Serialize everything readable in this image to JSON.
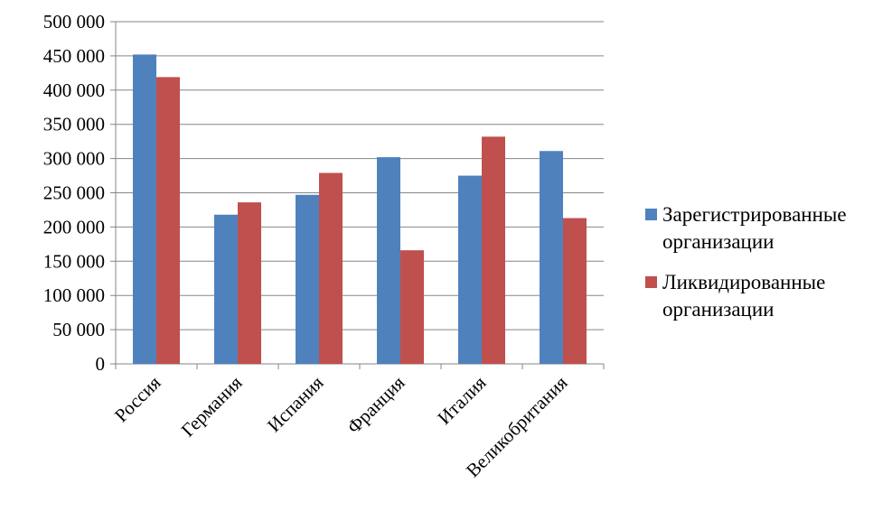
{
  "chart_data": {
    "type": "bar",
    "title": "",
    "xlabel": "",
    "ylabel": "",
    "categories": [
      "Россия",
      "Германия",
      "Испания",
      "Франция",
      "Италия",
      "Великобритания"
    ],
    "series": [
      {
        "name": "Зарегистрированные организации",
        "color": "#4F81BD",
        "values": [
          452000,
          218000,
          247000,
          302000,
          275000,
          311000
        ]
      },
      {
        "name": "Ликвидированные организации",
        "color": "#C0504D",
        "values": [
          419000,
          236000,
          279000,
          166000,
          332000,
          213000
        ]
      }
    ],
    "ylim": [
      0,
      500000
    ],
    "yticks": [
      0,
      50000,
      100000,
      150000,
      200000,
      250000,
      300000,
      350000,
      400000,
      450000,
      500000
    ],
    "ytick_labels": [
      "0",
      "50 000",
      "100 000",
      "150 000",
      "200 000",
      "250 000",
      "300 000",
      "350 000",
      "400 000",
      "450 000",
      "500 000"
    ],
    "grid": true,
    "legend_position": "right",
    "legend_lines": [
      [
        "Зарегистрированные",
        "организации"
      ],
      [
        "Ликвидированные",
        "организации"
      ]
    ]
  }
}
